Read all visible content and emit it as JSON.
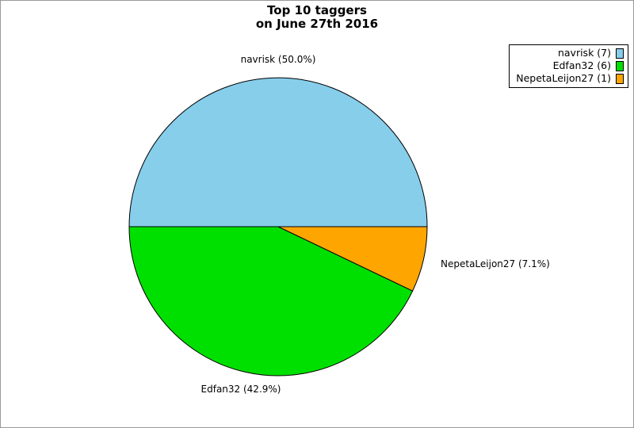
{
  "page": {
    "background": "#ffffff",
    "border_color": "#999999"
  },
  "chart_data": {
    "type": "pie",
    "title": "Top 10 taggers on June 27th 2016",
    "title_lines": [
      "Top 10 taggers",
      "on June 27th 2016"
    ],
    "slices": [
      {
        "name": "navrisk",
        "count": 7,
        "percent": 50.0,
        "label": "navrisk (50.0%)",
        "legend_label": "navrisk (7)",
        "color": "#87CEEB"
      },
      {
        "name": "Edfan32",
        "count": 6,
        "percent": 42.9,
        "label": "Edfan32 (42.9%)",
        "legend_label": "Edfan32 (6)",
        "color": "#00E000"
      },
      {
        "name": "NepetaLeijon27",
        "count": 1,
        "percent": 7.1,
        "label": "NepetaLeijon27 (7.1%)",
        "legend_label": "NepetaLeijon27 (1)",
        "color": "#FFA500"
      }
    ],
    "start_angle_deg": 0,
    "direction": "counterclockwise",
    "edge_color": "#000000",
    "legend_position": "top-right"
  }
}
